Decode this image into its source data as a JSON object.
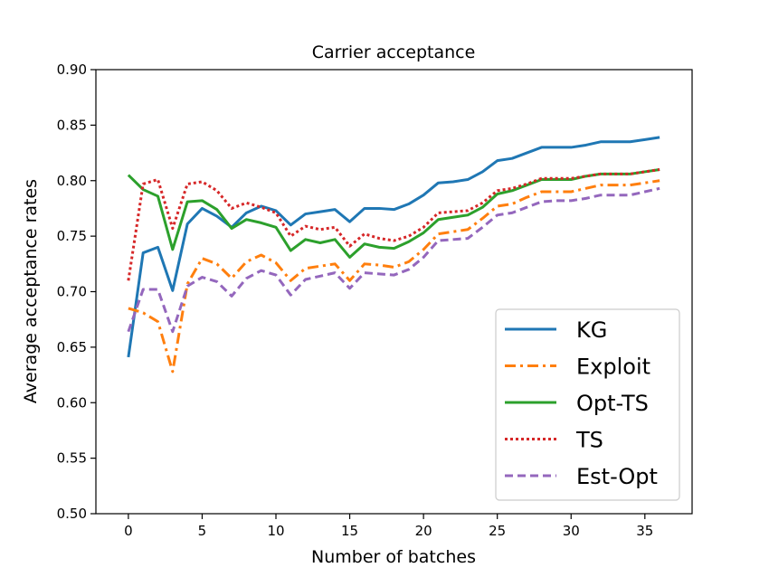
{
  "chart_data": {
    "type": "line",
    "title": "Carrier acceptance",
    "xlabel": "Number of batches",
    "ylabel": "Average acceptance rates",
    "xlim": [
      -2.2,
      38.2
    ],
    "ylim": [
      0.5,
      0.9
    ],
    "xticks": [
      0,
      5,
      10,
      15,
      20,
      25,
      30,
      35
    ],
    "yticks": [
      0.5,
      0.55,
      0.6,
      0.65,
      0.7,
      0.75,
      0.8,
      0.85,
      0.9
    ],
    "ytick_labels": [
      "0.50",
      "0.55",
      "0.60",
      "0.65",
      "0.70",
      "0.75",
      "0.80",
      "0.85",
      "0.90"
    ],
    "grid": false,
    "legend_position": "lower-right",
    "x": [
      0,
      1,
      2,
      3,
      4,
      5,
      6,
      7,
      8,
      9,
      10,
      11,
      12,
      13,
      14,
      15,
      16,
      17,
      18,
      19,
      20,
      21,
      22,
      23,
      24,
      25,
      26,
      27,
      28,
      29,
      30,
      31,
      32,
      33,
      34,
      35,
      36
    ],
    "series": [
      {
        "name": "KG",
        "color": "#1f77b4",
        "dash": "solid",
        "values": [
          0.641,
          0.735,
          0.74,
          0.701,
          0.761,
          0.775,
          0.768,
          0.758,
          0.771,
          0.777,
          0.773,
          0.76,
          0.77,
          0.772,
          0.774,
          0.763,
          0.775,
          0.775,
          0.774,
          0.779,
          0.787,
          0.798,
          0.799,
          0.801,
          0.808,
          0.818,
          0.82,
          0.825,
          0.83,
          0.83,
          0.83,
          0.832,
          0.835,
          0.835,
          0.835,
          0.837,
          0.839
        ]
      },
      {
        "name": "Exploit",
        "color": "#ff7f0e",
        "dash": "dashdot",
        "values": [
          0.685,
          0.681,
          0.673,
          0.628,
          0.707,
          0.73,
          0.725,
          0.712,
          0.727,
          0.733,
          0.726,
          0.71,
          0.721,
          0.723,
          0.725,
          0.71,
          0.725,
          0.724,
          0.722,
          0.727,
          0.738,
          0.752,
          0.754,
          0.756,
          0.766,
          0.777,
          0.779,
          0.785,
          0.79,
          0.79,
          0.79,
          0.793,
          0.796,
          0.796,
          0.796,
          0.798,
          0.8
        ]
      },
      {
        "name": "Opt-TS",
        "color": "#2ca02c",
        "dash": "solid",
        "values": [
          0.805,
          0.792,
          0.786,
          0.738,
          0.781,
          0.782,
          0.774,
          0.757,
          0.765,
          0.762,
          0.758,
          0.737,
          0.747,
          0.744,
          0.747,
          0.731,
          0.743,
          0.74,
          0.739,
          0.745,
          0.753,
          0.765,
          0.767,
          0.769,
          0.776,
          0.788,
          0.791,
          0.796,
          0.801,
          0.801,
          0.801,
          0.804,
          0.806,
          0.806,
          0.806,
          0.808,
          0.81
        ]
      },
      {
        "name": "TS",
        "color": "#d62728",
        "dash": "dotted",
        "values": [
          0.71,
          0.797,
          0.801,
          0.757,
          0.797,
          0.799,
          0.791,
          0.775,
          0.78,
          0.776,
          0.771,
          0.75,
          0.759,
          0.756,
          0.758,
          0.741,
          0.752,
          0.748,
          0.746,
          0.75,
          0.758,
          0.771,
          0.772,
          0.773,
          0.78,
          0.791,
          0.793,
          0.797,
          0.802,
          0.802,
          0.802,
          0.804,
          0.806,
          0.806,
          0.806,
          0.808,
          0.81
        ]
      },
      {
        "name": "Est-Opt",
        "color": "#9467bd",
        "dash": "dashed",
        "values": [
          0.664,
          0.702,
          0.702,
          0.664,
          0.705,
          0.713,
          0.709,
          0.696,
          0.712,
          0.719,
          0.715,
          0.697,
          0.711,
          0.714,
          0.717,
          0.703,
          0.717,
          0.716,
          0.715,
          0.72,
          0.731,
          0.746,
          0.747,
          0.748,
          0.758,
          0.769,
          0.771,
          0.776,
          0.781,
          0.782,
          0.782,
          0.784,
          0.787,
          0.787,
          0.787,
          0.79,
          0.793
        ]
      }
    ]
  }
}
